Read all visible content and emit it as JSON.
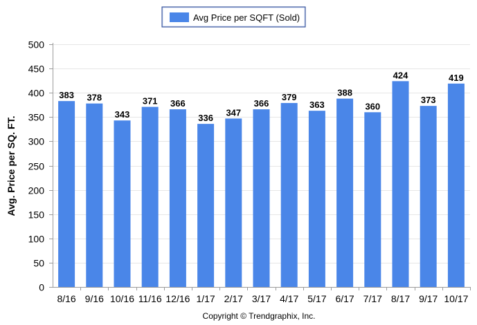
{
  "chart_data": {
    "type": "bar",
    "categories": [
      "8/16",
      "9/16",
      "10/16",
      "11/16",
      "12/16",
      "1/17",
      "2/17",
      "3/17",
      "4/17",
      "5/17",
      "6/17",
      "7/17",
      "8/17",
      "9/17",
      "10/17"
    ],
    "series": [
      {
        "name": "Avg Price per SQFT (Sold)",
        "values": [
          383,
          378,
          343,
          371,
          366,
          336,
          347,
          366,
          379,
          363,
          388,
          360,
          424,
          373,
          419
        ],
        "color": "#4a86e8"
      }
    ],
    "title": "",
    "xlabel": "",
    "ylabel": "Avg. Price per SQ. FT.",
    "ylim": [
      0,
      500
    ],
    "yticks": [
      0,
      50,
      100,
      150,
      200,
      250,
      300,
      350,
      400,
      450,
      500
    ],
    "grid": true,
    "legend_position": "top-center",
    "data_labels": true
  },
  "footer": {
    "copyright": "Copyright © Trendgraphix, Inc."
  },
  "colors": {
    "bar": "#4a86e8",
    "grid": "#e6e6e6",
    "axis": "#9a9a9a"
  }
}
